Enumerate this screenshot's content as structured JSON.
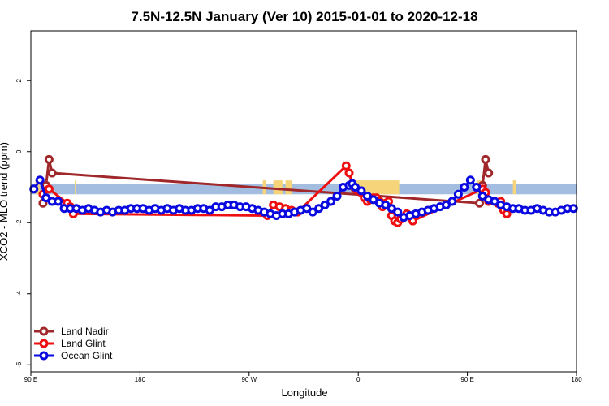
{
  "chart_data": {
    "type": "line",
    "title": "7.5N-12.5N January (Ver 10)   2015-01-01 to 2020-12-18",
    "xlabel": "Longitude",
    "ylabel": "XCO2 - MLO trend (ppm)",
    "xlim": [
      90,
      450
    ],
    "ylim": [
      -6.2,
      3.4
    ],
    "x_ticks": [
      {
        "value": 90,
        "label": "90 E"
      },
      {
        "value": 162,
        "label": "180"
      },
      {
        "value": 234,
        "label": "90 W"
      },
      {
        "value": 306,
        "label": "0"
      },
      {
        "value": 378,
        "label": "90 E"
      },
      {
        "value": 450,
        "label": "180"
      }
    ],
    "y_ticks": [
      {
        "value": -6,
        "label": "-6"
      },
      {
        "value": -4,
        "label": "-4"
      },
      {
        "value": -2,
        "label": "-2"
      },
      {
        "value": 0,
        "label": "0"
      },
      {
        "value": 2,
        "label": "2"
      }
    ],
    "grid": false,
    "legend_position": "bottom-left",
    "land_band": {
      "y_range": [
        -1.2,
        -0.9
      ],
      "ocean_color": "#a3bde0",
      "land_color": "#f5d47a",
      "land_x_ranges": [
        [
          93,
          96
        ],
        [
          119,
          120
        ],
        [
          243,
          245
        ],
        [
          250,
          256
        ],
        [
          258,
          262
        ],
        [
          303,
          333
        ],
        [
          384,
          388
        ],
        [
          408,
          410
        ]
      ]
    },
    "series": [
      {
        "name": "Land Nadir",
        "color": "#a0282a",
        "x": [
          98,
          100,
          102,
          104,
          386,
          388,
          390,
          392
        ],
        "y": [
          -1.45,
          -0.95,
          -0.22,
          -0.6,
          -1.45,
          -0.95,
          -0.22,
          -0.6
        ]
      },
      {
        "name": "Land Glint",
        "color": "#ee1010",
        "x": [
          98,
          102,
          114,
          116,
          118,
          246,
          250,
          254,
          258,
          262,
          266,
          298,
          300,
          302,
          304,
          306,
          308,
          310,
          312,
          314,
          316,
          318,
          320,
          322,
          324,
          326,
          328,
          330,
          332,
          334,
          336,
          338,
          342,
          388,
          390,
          392,
          398,
          400,
          402,
          404
        ],
        "y": [
          -1.2,
          -1.05,
          -1.45,
          -1.55,
          -1.75,
          -1.8,
          -1.5,
          -1.55,
          -1.6,
          -1.65,
          -1.7,
          -0.4,
          -0.6,
          -0.9,
          -1.05,
          -1.1,
          -1.15,
          -1.3,
          -1.4,
          -1.35,
          -1.3,
          -1.3,
          -1.4,
          -1.55,
          -1.45,
          -1.4,
          -1.8,
          -1.95,
          -2.0,
          -1.9,
          -1.85,
          -1.75,
          -1.95,
          -1.05,
          -1.15,
          -1.4,
          -1.45,
          -1.4,
          -1.65,
          -1.75
        ]
      },
      {
        "name": "Ocean Glint",
        "color": "#0a0ae0",
        "x": [
          92,
          96,
          100,
          104,
          108,
          112,
          116,
          120,
          124,
          128,
          132,
          136,
          140,
          144,
          148,
          152,
          156,
          160,
          164,
          168,
          172,
          176,
          180,
          184,
          188,
          192,
          196,
          200,
          204,
          208,
          212,
          216,
          220,
          224,
          228,
          232,
          236,
          240,
          244,
          248,
          252,
          256,
          260,
          264,
          268,
          272,
          276,
          280,
          284,
          288,
          292,
          296,
          300,
          302,
          304,
          308,
          312,
          316,
          320,
          324,
          328,
          332,
          336,
          340,
          344,
          348,
          352,
          356,
          360,
          364,
          368,
          372,
          376,
          380,
          384,
          388,
          392,
          396,
          400,
          404,
          408,
          412,
          416,
          420,
          424,
          428,
          432,
          436,
          440,
          444,
          448
        ],
        "y": [
          -1.05,
          -0.8,
          -1.3,
          -1.4,
          -1.4,
          -1.6,
          -1.6,
          -1.6,
          -1.65,
          -1.6,
          -1.65,
          -1.7,
          -1.65,
          -1.7,
          -1.65,
          -1.65,
          -1.6,
          -1.6,
          -1.6,
          -1.65,
          -1.6,
          -1.65,
          -1.6,
          -1.65,
          -1.6,
          -1.65,
          -1.65,
          -1.6,
          -1.6,
          -1.65,
          -1.55,
          -1.55,
          -1.5,
          -1.5,
          -1.55,
          -1.55,
          -1.6,
          -1.65,
          -1.7,
          -1.75,
          -1.8,
          -1.75,
          -1.75,
          -1.7,
          -1.65,
          -1.6,
          -1.7,
          -1.6,
          -1.5,
          -1.4,
          -1.25,
          -1.0,
          -0.95,
          -0.9,
          -1.0,
          -1.1,
          -1.25,
          -1.35,
          -1.45,
          -1.5,
          -1.6,
          -1.7,
          -1.85,
          -1.8,
          -1.75,
          -1.7,
          -1.65,
          -1.6,
          -1.55,
          -1.5,
          -1.4,
          -1.2,
          -1.0,
          -0.8,
          -1.0,
          -1.25,
          -1.35,
          -1.4,
          -1.5,
          -1.55,
          -1.6,
          -1.6,
          -1.65,
          -1.65,
          -1.6,
          -1.65,
          -1.7,
          -1.7,
          -1.65,
          -1.6,
          -1.6
        ]
      }
    ]
  }
}
